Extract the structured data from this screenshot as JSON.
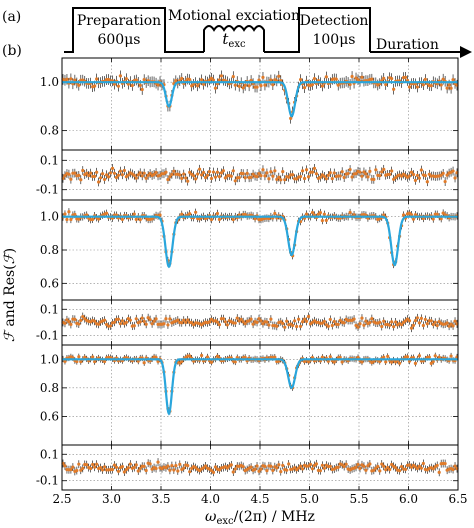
{
  "panel_labels": {
    "a": "(a)",
    "b": "(b)"
  },
  "sequence": {
    "preparation": {
      "title": "Preparation",
      "duration": "600μs"
    },
    "excitation": {
      "title": "Motional exciation",
      "duration": "t",
      "duration_sub": "exc"
    },
    "detection": {
      "title": "Detection",
      "duration": "100μs"
    },
    "time_axis": "Duration"
  },
  "colors": {
    "fit": "#2aa6dc",
    "data": "#e07b2a",
    "errorbar": "#000000",
    "grid": "#888888"
  },
  "axes": {
    "xlabel": {
      "main": "ω",
      "sub": "exc",
      "rest": "/(2π) / MHz"
    },
    "ylabel": {
      "a": "ℱ",
      "b": " and Res(",
      "c": "ℱ",
      "d": ")"
    },
    "x_ticks": [
      "2.5",
      "3.0",
      "3.5",
      "4.0",
      "4.5",
      "5.0",
      "5.5",
      "6.0",
      "6.5"
    ],
    "x_range": [
      2.5,
      6.5
    ]
  },
  "chart_data": [
    {
      "type": "scatter",
      "panel": "main-1",
      "ylim": [
        0.72,
        1.1
      ],
      "y_ticks": [
        "1.0",
        "0.8"
      ],
      "baseline": 1.0,
      "dips": [
        {
          "x": 3.58,
          "depth": 0.1,
          "width": 0.03
        },
        {
          "x": 4.82,
          "depth": 0.14,
          "width": 0.035
        }
      ]
    },
    {
      "type": "scatter",
      "panel": "residual-1",
      "ylim": [
        -0.17,
        0.17
      ],
      "y_ticks": [
        "0.1",
        "-0.1"
      ]
    },
    {
      "type": "scatter",
      "panel": "main-2",
      "ylim": [
        0.5,
        1.1
      ],
      "y_ticks": [
        "1.0",
        "0.8",
        "0.6"
      ],
      "baseline": 1.0,
      "dips": [
        {
          "x": 3.58,
          "depth": 0.3,
          "width": 0.035
        },
        {
          "x": 4.82,
          "depth": 0.23,
          "width": 0.035
        },
        {
          "x": 5.86,
          "depth": 0.29,
          "width": 0.035
        }
      ]
    },
    {
      "type": "scatter",
      "panel": "residual-2",
      "ylim": [
        -0.17,
        0.17
      ],
      "y_ticks": [
        "0.1",
        "-0.1"
      ]
    },
    {
      "type": "scatter",
      "panel": "main-3",
      "ylim": [
        0.4,
        1.1
      ],
      "y_ticks": [
        "1.0",
        "0.8",
        "0.6"
      ],
      "baseline": 1.0,
      "dips": [
        {
          "x": 3.58,
          "depth": 0.38,
          "width": 0.03
        },
        {
          "x": 4.82,
          "depth": 0.2,
          "width": 0.035
        }
      ]
    },
    {
      "type": "scatter",
      "panel": "residual-3",
      "ylim": [
        -0.17,
        0.17
      ],
      "y_ticks": [
        "0.1",
        "-0.1"
      ]
    }
  ]
}
